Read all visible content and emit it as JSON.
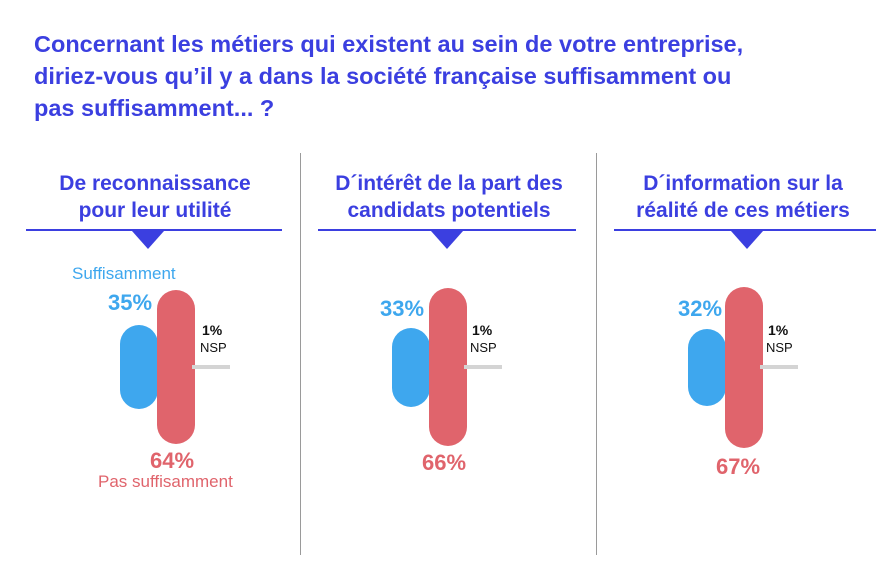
{
  "title_lines": [
    "Concernant les métiers qui existent au sein de votre entreprise,",
    "diriez-vous qu’il y a dans la société française suffisamment ou",
    "pas suffisamment... ?"
  ],
  "legend": {
    "suffisamment": "Suffisamment",
    "pas_suffisamment": "Pas suffisamment"
  },
  "colors": {
    "blue": "#3ea7ee",
    "red": "#e0646c",
    "accent": "#3b3fe0",
    "nsp": "#d4d4d4"
  },
  "chart_data": [
    {
      "type": "bar",
      "title_lines": [
        "De reconnaissance",
        "pour leur utilité"
      ],
      "series": [
        {
          "name": "Suffisamment",
          "value": 35,
          "label": "35%"
        },
        {
          "name": "Pas suffisamment",
          "value": 64,
          "label": "64%"
        },
        {
          "name": "NSP",
          "value": 1,
          "label": "1%"
        }
      ]
    },
    {
      "type": "bar",
      "title_lines": [
        "D´intérêt de la part des",
        "candidats potentiels"
      ],
      "series": [
        {
          "name": "Suffisamment",
          "value": 33,
          "label": "33%"
        },
        {
          "name": "Pas suffisamment",
          "value": 66,
          "label": "66%"
        },
        {
          "name": "NSP",
          "value": 1,
          "label": "1%"
        }
      ]
    },
    {
      "type": "bar",
      "title_lines": [
        "D´information sur la",
        "réalité de ces métiers"
      ],
      "series": [
        {
          "name": "Suffisamment",
          "value": 32,
          "label": "32%"
        },
        {
          "name": "Pas suffisamment",
          "value": 67,
          "label": "67%"
        },
        {
          "name": "NSP",
          "value": 1,
          "label": "1%"
        }
      ]
    }
  ]
}
